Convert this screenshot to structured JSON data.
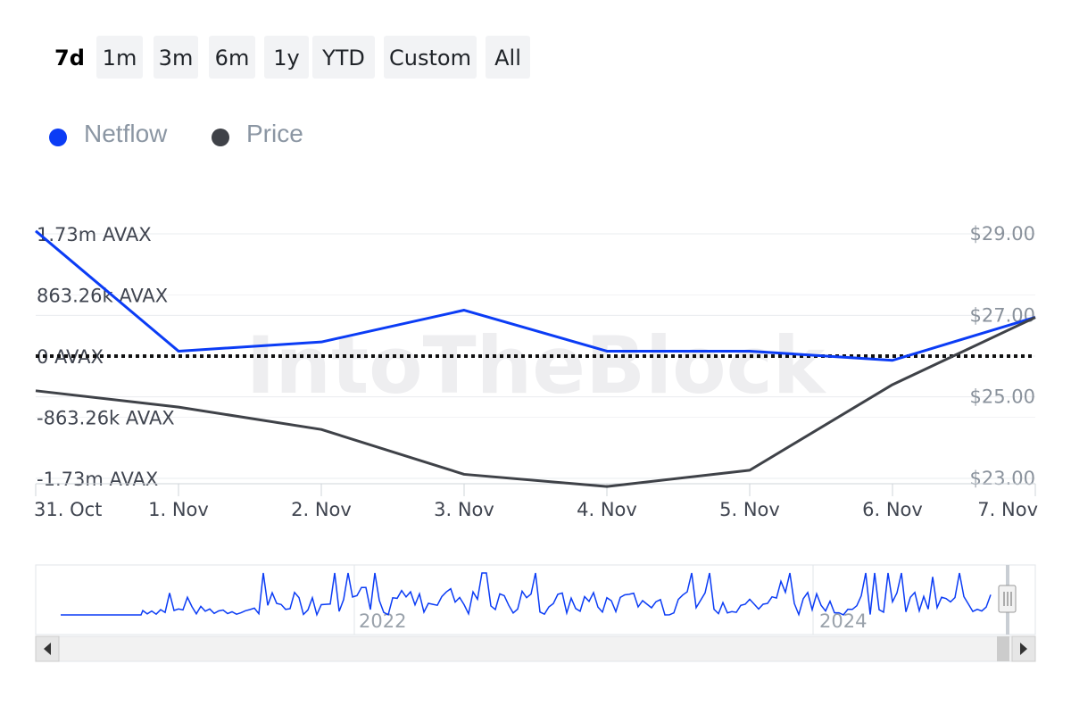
{
  "range_selector": {
    "buttons": [
      {
        "label": "7d",
        "active": true
      },
      {
        "label": "1m",
        "active": false
      },
      {
        "label": "3m",
        "active": false
      },
      {
        "label": "6m",
        "active": false
      },
      {
        "label": "1y",
        "active": false
      },
      {
        "label": "YTD",
        "active": false
      },
      {
        "label": "Custom",
        "active": false
      },
      {
        "label": "All",
        "active": false
      }
    ]
  },
  "legend": {
    "items": [
      {
        "label": "Netflow",
        "color": "#0b3cf5"
      },
      {
        "label": "Price",
        "color": "#3f4248"
      }
    ]
  },
  "watermark": "IntoTheBlock",
  "chart_data": {
    "type": "line",
    "x": [
      "31. Oct",
      "1. Nov",
      "2. Nov",
      "3. Nov",
      "4. Nov",
      "5. Nov",
      "6. Nov",
      "7. Nov"
    ],
    "y_left": {
      "ticks": [
        "1.73m AVAX",
        "863.26k AVAX",
        "0 AVAX",
        "-863.26k AVAX",
        "-1.73m AVAX"
      ],
      "range": [
        -1730000,
        1730000
      ]
    },
    "y_right": {
      "ticks": [
        "$29.00",
        "$27.00",
        "$25.00",
        "$23.00"
      ],
      "range": [
        23,
        29
      ]
    },
    "zero_line": true,
    "grid": true,
    "series": [
      {
        "name": "Netflow",
        "axis": "left",
        "color": "#0b3cf5",
        "values": [
          1770000,
          70000,
          200000,
          650000,
          70000,
          70000,
          -60000,
          550000
        ]
      },
      {
        "name": "Price",
        "axis": "right",
        "color": "#3f4248",
        "values": [
          25.15,
          24.75,
          24.2,
          23.1,
          22.8,
          23.2,
          25.3,
          26.95
        ]
      }
    ]
  },
  "navigator": {
    "year_labels": [
      "2022",
      "2024"
    ]
  }
}
